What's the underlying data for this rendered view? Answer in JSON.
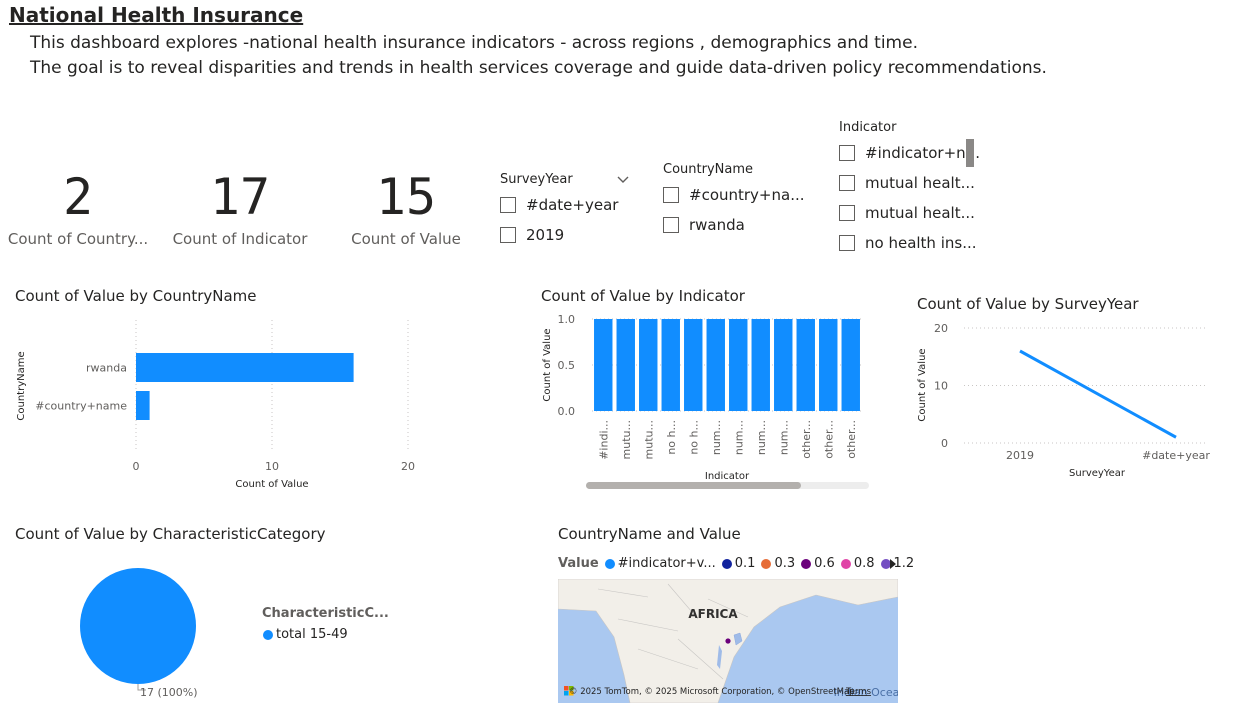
{
  "header": {
    "title": "National Health Insurance",
    "line1": "This dashboard explores -national health insurance indicators - across regions , demographics and time.",
    "line2": "The goal is to reveal disparities and trends in health services coverage and guide data-driven policy recommendations."
  },
  "kpis": [
    {
      "value": "2",
      "label": "Count of Country..."
    },
    {
      "value": "17",
      "label": "Count of Indicator"
    },
    {
      "value": "15",
      "label": "Count of Value"
    }
  ],
  "slicers": {
    "survey_year": {
      "title": "SurveyYear",
      "items": [
        "#date+year",
        "2019"
      ]
    },
    "country_name": {
      "title": "CountryName",
      "items": [
        "#country+na...",
        "rwanda"
      ]
    },
    "indicator": {
      "title": "Indicator",
      "items": [
        "#indicator+n...",
        "mutual healt...",
        "mutual healt...",
        "no health ins..."
      ]
    }
  },
  "chart_country": {
    "title": "Count of Value by CountryName",
    "ylabel": "CountryName",
    "xlabel": "Count of Value",
    "color": "#118dff",
    "chart_data": {
      "type": "bar",
      "orientation": "horizontal",
      "categories": [
        "rwanda",
        "#country+name"
      ],
      "values": [
        16,
        1
      ],
      "xlim": [
        0,
        20
      ],
      "ticks": [
        "0",
        "10",
        "20"
      ]
    }
  },
  "chart_indicator": {
    "title": "Count of Value by Indicator",
    "ylabel": "Count of Value",
    "xlabel": "Indicator",
    "color": "#118dff",
    "chart_data": {
      "type": "bar",
      "categories": [
        "#indi...",
        "mutu...",
        "mutu...",
        "no h...",
        "no h...",
        "num...",
        "num...",
        "num...",
        "num...",
        "other...",
        "other...",
        "other..."
      ],
      "values": [
        1,
        1,
        1,
        1,
        1,
        1,
        1,
        1,
        1,
        1,
        1,
        1
      ],
      "ylim": [
        0,
        1
      ],
      "ticks": [
        "0.0",
        "0.5",
        "1.0"
      ]
    }
  },
  "chart_year": {
    "title": "Count of Value by SurveyYear",
    "ylabel": "Count of Value",
    "xlabel": "SurveyYear",
    "color": "#118dff",
    "chart_data": {
      "type": "line",
      "categories": [
        "2019",
        "#date+year"
      ],
      "values": [
        16,
        1
      ],
      "ylim": [
        0,
        20
      ],
      "ticks": [
        "0",
        "10",
        "20"
      ]
    }
  },
  "chart_pie": {
    "title": "Count of Value by CharacteristicCategory",
    "legend_title": "CharacteristicC...",
    "legend_item": "total 15-49",
    "data_label": "17 (100%)",
    "color": "#118dff",
    "chart_data": {
      "type": "pie",
      "categories": [
        "total 15-49"
      ],
      "values": [
        17
      ]
    }
  },
  "map": {
    "title": "CountryName and Value",
    "legend_title": "Value",
    "legend_items": [
      {
        "label": "#indicator+v...",
        "color": "#118dff"
      },
      {
        "label": "0.1",
        "color": "#12239e"
      },
      {
        "label": "0.3",
        "color": "#e66c37"
      },
      {
        "label": "0.6",
        "color": "#6b007b"
      },
      {
        "label": "0.8",
        "color": "#e044a7"
      },
      {
        "label": "1.2",
        "color": "#744ec2"
      }
    ],
    "region_label": "AFRICA",
    "ocean_label": "Indian Ocean",
    "attribution": "© 2025 TomTom, © 2025 Microsoft Corporation, © OpenStreetMap",
    "terms": "Terms",
    "water_color": "#aac8f0",
    "land_color": "#f2efe9"
  }
}
